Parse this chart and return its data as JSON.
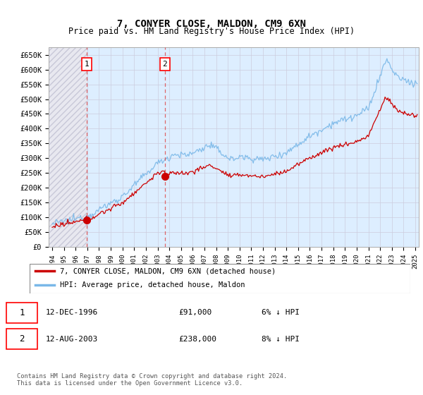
{
  "title": "7, CONYER CLOSE, MALDON, CM9 6XN",
  "subtitle": "Price paid vs. HM Land Registry's House Price Index (HPI)",
  "ylabel_ticks": [
    "£0",
    "£50K",
    "£100K",
    "£150K",
    "£200K",
    "£250K",
    "£300K",
    "£350K",
    "£400K",
    "£450K",
    "£500K",
    "£550K",
    "£600K",
    "£650K"
  ],
  "ytick_values": [
    0,
    50000,
    100000,
    150000,
    200000,
    250000,
    300000,
    350000,
    400000,
    450000,
    500000,
    550000,
    600000,
    650000
  ],
  "ylim": [
    0,
    675000
  ],
  "xlim_start": 1993.7,
  "xlim_end": 2025.3,
  "purchase1_year": 1996,
  "purchase1_month": 12,
  "purchase1_date": 1996.96,
  "purchase1_price": 91000,
  "purchase2_year": 2003,
  "purchase2_month": 8,
  "purchase2_date": 2003.62,
  "purchase2_price": 238000,
  "hpi_color": "#7ab8e8",
  "price_color": "#cc0000",
  "bg_blue": "#ddeeff",
  "bg_hatch": "#cccccc",
  "label_red": "7, CONYER CLOSE, MALDON, CM9 6XN (detached house)",
  "label_blue": "HPI: Average price, detached house, Maldon",
  "footer": "Contains HM Land Registry data © Crown copyright and database right 2024.\nThis data is licensed under the Open Government Licence v3.0.",
  "grid_color": "#bbbbcc",
  "title_fontsize": 10,
  "subtitle_fontsize": 8.5,
  "axis_fontsize": 7.5
}
